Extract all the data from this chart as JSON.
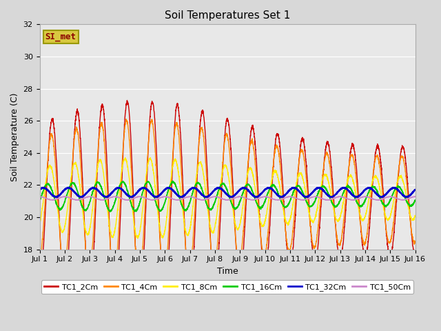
{
  "title": "Soil Temperatures Set 1",
  "xlabel": "Time",
  "ylabel": "Soil Temperature (C)",
  "ylim": [
    18,
    32
  ],
  "xlim": [
    0,
    15
  ],
  "x_tick_labels": [
    "Jul 1",
    "Jul 2",
    "Jul 3",
    "Jul 4",
    "Jul 5",
    "Jul 6",
    "Jul 7",
    "Jul 8",
    "Jul 9",
    "Jul 10",
    "Jul 11",
    "Jul 12",
    "Jul 13",
    "Jul 14",
    "Jul 15",
    "Jul 16"
  ],
  "background_color": "#d8d8d8",
  "plot_bg_color": "#e8e8e8",
  "annotation_text": "SI_met",
  "annotation_color": "#8b0000",
  "annotation_bg": "#d8c840",
  "annotation_border": "#999900",
  "series": {
    "TC1_2Cm": {
      "color": "#cc0000",
      "lw": 1.0
    },
    "TC1_4Cm": {
      "color": "#ff8800",
      "lw": 1.0
    },
    "TC1_8Cm": {
      "color": "#ffee00",
      "lw": 1.0
    },
    "TC1_16Cm": {
      "color": "#00cc00",
      "lw": 1.2
    },
    "TC1_32Cm": {
      "color": "#0000cc",
      "lw": 1.8
    },
    "TC1_50Cm": {
      "color": "#cc88cc",
      "lw": 1.2
    }
  },
  "legend_colors": [
    "#cc0000",
    "#ff8800",
    "#ffee00",
    "#00cc00",
    "#0000cc",
    "#cc88cc"
  ],
  "legend_labels": [
    "TC1_2Cm",
    "TC1_4Cm",
    "TC1_8Cm",
    "TC1_16Cm",
    "TC1_32Cm",
    "TC1_50Cm"
  ],
  "figsize": [
    6.4,
    4.8
  ],
  "dpi": 100
}
